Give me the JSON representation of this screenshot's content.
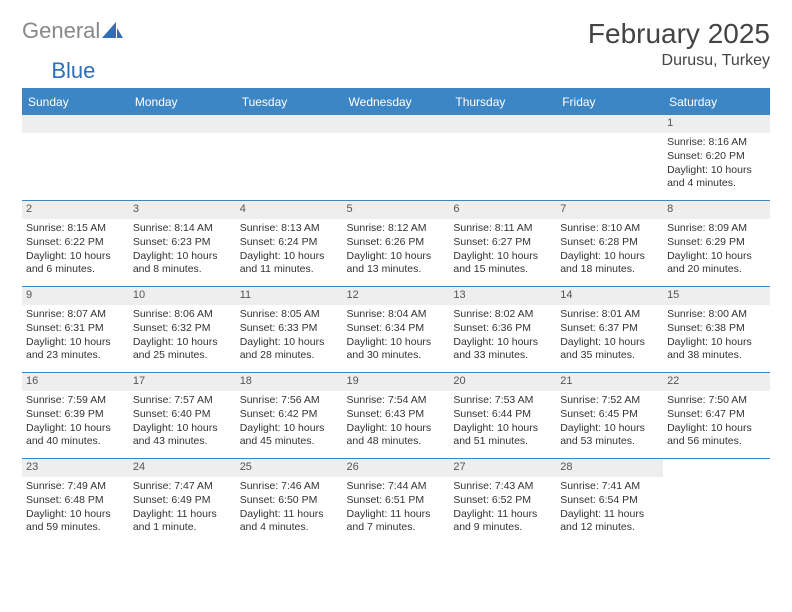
{
  "logo": {
    "text1": "General",
    "text2": "Blue"
  },
  "title": {
    "month": "February 2025",
    "location": "Durusu, Turkey"
  },
  "colors": {
    "header_bg": "#3d86c6",
    "header_text": "#ffffff",
    "daynum_bg": "#eeeeee",
    "border": "#3d86c6",
    "text": "#333333",
    "logo_grey": "#888888",
    "logo_blue": "#2e6fb5",
    "page_bg": "#ffffff"
  },
  "weekdays": [
    "Sunday",
    "Monday",
    "Tuesday",
    "Wednesday",
    "Thursday",
    "Friday",
    "Saturday"
  ],
  "weeks": [
    [
      null,
      null,
      null,
      null,
      null,
      null,
      {
        "n": "1",
        "sr": "Sunrise: 8:16 AM",
        "ss": "Sunset: 6:20 PM",
        "dl": "Daylight: 10 hours and 4 minutes."
      }
    ],
    [
      {
        "n": "2",
        "sr": "Sunrise: 8:15 AM",
        "ss": "Sunset: 6:22 PM",
        "dl": "Daylight: 10 hours and 6 minutes."
      },
      {
        "n": "3",
        "sr": "Sunrise: 8:14 AM",
        "ss": "Sunset: 6:23 PM",
        "dl": "Daylight: 10 hours and 8 minutes."
      },
      {
        "n": "4",
        "sr": "Sunrise: 8:13 AM",
        "ss": "Sunset: 6:24 PM",
        "dl": "Daylight: 10 hours and 11 minutes."
      },
      {
        "n": "5",
        "sr": "Sunrise: 8:12 AM",
        "ss": "Sunset: 6:26 PM",
        "dl": "Daylight: 10 hours and 13 minutes."
      },
      {
        "n": "6",
        "sr": "Sunrise: 8:11 AM",
        "ss": "Sunset: 6:27 PM",
        "dl": "Daylight: 10 hours and 15 minutes."
      },
      {
        "n": "7",
        "sr": "Sunrise: 8:10 AM",
        "ss": "Sunset: 6:28 PM",
        "dl": "Daylight: 10 hours and 18 minutes."
      },
      {
        "n": "8",
        "sr": "Sunrise: 8:09 AM",
        "ss": "Sunset: 6:29 PM",
        "dl": "Daylight: 10 hours and 20 minutes."
      }
    ],
    [
      {
        "n": "9",
        "sr": "Sunrise: 8:07 AM",
        "ss": "Sunset: 6:31 PM",
        "dl": "Daylight: 10 hours and 23 minutes."
      },
      {
        "n": "10",
        "sr": "Sunrise: 8:06 AM",
        "ss": "Sunset: 6:32 PM",
        "dl": "Daylight: 10 hours and 25 minutes."
      },
      {
        "n": "11",
        "sr": "Sunrise: 8:05 AM",
        "ss": "Sunset: 6:33 PM",
        "dl": "Daylight: 10 hours and 28 minutes."
      },
      {
        "n": "12",
        "sr": "Sunrise: 8:04 AM",
        "ss": "Sunset: 6:34 PM",
        "dl": "Daylight: 10 hours and 30 minutes."
      },
      {
        "n": "13",
        "sr": "Sunrise: 8:02 AM",
        "ss": "Sunset: 6:36 PM",
        "dl": "Daylight: 10 hours and 33 minutes."
      },
      {
        "n": "14",
        "sr": "Sunrise: 8:01 AM",
        "ss": "Sunset: 6:37 PM",
        "dl": "Daylight: 10 hours and 35 minutes."
      },
      {
        "n": "15",
        "sr": "Sunrise: 8:00 AM",
        "ss": "Sunset: 6:38 PM",
        "dl": "Daylight: 10 hours and 38 minutes."
      }
    ],
    [
      {
        "n": "16",
        "sr": "Sunrise: 7:59 AM",
        "ss": "Sunset: 6:39 PM",
        "dl": "Daylight: 10 hours and 40 minutes."
      },
      {
        "n": "17",
        "sr": "Sunrise: 7:57 AM",
        "ss": "Sunset: 6:40 PM",
        "dl": "Daylight: 10 hours and 43 minutes."
      },
      {
        "n": "18",
        "sr": "Sunrise: 7:56 AM",
        "ss": "Sunset: 6:42 PM",
        "dl": "Daylight: 10 hours and 45 minutes."
      },
      {
        "n": "19",
        "sr": "Sunrise: 7:54 AM",
        "ss": "Sunset: 6:43 PM",
        "dl": "Daylight: 10 hours and 48 minutes."
      },
      {
        "n": "20",
        "sr": "Sunrise: 7:53 AM",
        "ss": "Sunset: 6:44 PM",
        "dl": "Daylight: 10 hours and 51 minutes."
      },
      {
        "n": "21",
        "sr": "Sunrise: 7:52 AM",
        "ss": "Sunset: 6:45 PM",
        "dl": "Daylight: 10 hours and 53 minutes."
      },
      {
        "n": "22",
        "sr": "Sunrise: 7:50 AM",
        "ss": "Sunset: 6:47 PM",
        "dl": "Daylight: 10 hours and 56 minutes."
      }
    ],
    [
      {
        "n": "23",
        "sr": "Sunrise: 7:49 AM",
        "ss": "Sunset: 6:48 PM",
        "dl": "Daylight: 10 hours and 59 minutes."
      },
      {
        "n": "24",
        "sr": "Sunrise: 7:47 AM",
        "ss": "Sunset: 6:49 PM",
        "dl": "Daylight: 11 hours and 1 minute."
      },
      {
        "n": "25",
        "sr": "Sunrise: 7:46 AM",
        "ss": "Sunset: 6:50 PM",
        "dl": "Daylight: 11 hours and 4 minutes."
      },
      {
        "n": "26",
        "sr": "Sunrise: 7:44 AM",
        "ss": "Sunset: 6:51 PM",
        "dl": "Daylight: 11 hours and 7 minutes."
      },
      {
        "n": "27",
        "sr": "Sunrise: 7:43 AM",
        "ss": "Sunset: 6:52 PM",
        "dl": "Daylight: 11 hours and 9 minutes."
      },
      {
        "n": "28",
        "sr": "Sunrise: 7:41 AM",
        "ss": "Sunset: 6:54 PM",
        "dl": "Daylight: 11 hours and 12 minutes."
      },
      null
    ]
  ]
}
